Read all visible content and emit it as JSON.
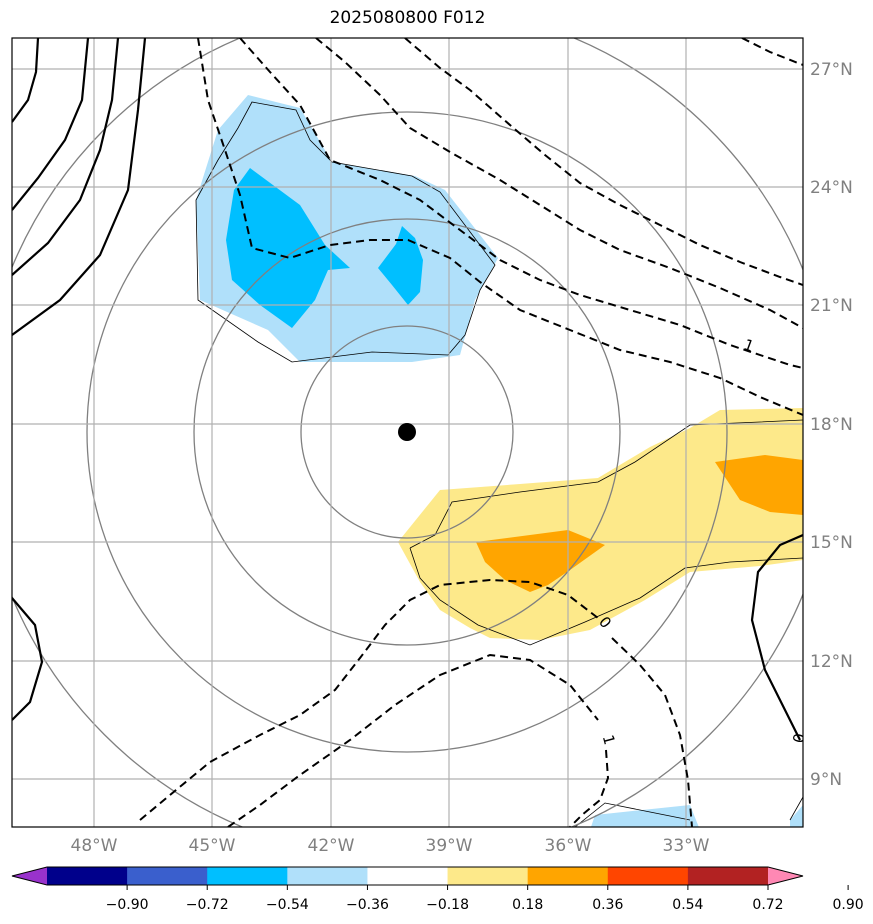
{
  "title": "2025080800 F012",
  "map": {
    "lon_range": [
      -50,
      -30
    ],
    "lat_range": [
      8,
      28
    ],
    "lon_ticks": [
      "48°W",
      "45°W",
      "42°W",
      "39°W",
      "36°W",
      "33°W"
    ],
    "lat_ticks": [
      "27°N",
      "24°N",
      "21°N",
      "18°N",
      "15°N",
      "12°N",
      "9°N"
    ],
    "center_marker": {
      "lon": "40°W",
      "lat": "18°N"
    },
    "contour_labels": [
      "1",
      "0",
      "1",
      "0"
    ]
  },
  "colorbar": {
    "levels": [
      "−0.90",
      "−0.72",
      "−0.54",
      "−0.36",
      "−0.18",
      "0.18",
      "0.36",
      "0.54",
      "0.72",
      "0.90"
    ],
    "colors": [
      "#9932cc",
      "#00008b",
      "#3a5fcd",
      "#00bfff",
      "#b0e0fa",
      "#ffffff",
      "#fde98a",
      "#ffa500",
      "#ff4500",
      "#b22222",
      "#ff88b4"
    ]
  }
}
